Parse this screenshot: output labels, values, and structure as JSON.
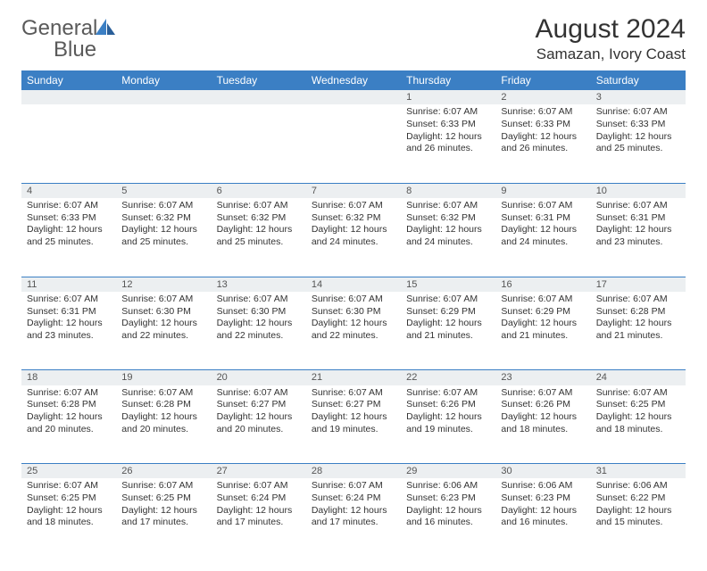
{
  "logo": {
    "word1": "General",
    "word2": "Blue"
  },
  "header": {
    "title": "August 2024",
    "location": "Samazan, Ivory Coast"
  },
  "colors": {
    "accent": "#3b7fc4",
    "daynum_bg": "#eceff1",
    "text": "#333333",
    "logo_gray": "#5a5a5a"
  },
  "daysOfWeek": [
    "Sunday",
    "Monday",
    "Tuesday",
    "Wednesday",
    "Thursday",
    "Friday",
    "Saturday"
  ],
  "weeks": [
    [
      null,
      null,
      null,
      null,
      {
        "n": "1",
        "sr": "Sunrise: 6:07 AM",
        "ss": "Sunset: 6:33 PM",
        "dl1": "Daylight: 12 hours",
        "dl2": "and 26 minutes."
      },
      {
        "n": "2",
        "sr": "Sunrise: 6:07 AM",
        "ss": "Sunset: 6:33 PM",
        "dl1": "Daylight: 12 hours",
        "dl2": "and 26 minutes."
      },
      {
        "n": "3",
        "sr": "Sunrise: 6:07 AM",
        "ss": "Sunset: 6:33 PM",
        "dl1": "Daylight: 12 hours",
        "dl2": "and 25 minutes."
      }
    ],
    [
      {
        "n": "4",
        "sr": "Sunrise: 6:07 AM",
        "ss": "Sunset: 6:33 PM",
        "dl1": "Daylight: 12 hours",
        "dl2": "and 25 minutes."
      },
      {
        "n": "5",
        "sr": "Sunrise: 6:07 AM",
        "ss": "Sunset: 6:32 PM",
        "dl1": "Daylight: 12 hours",
        "dl2": "and 25 minutes."
      },
      {
        "n": "6",
        "sr": "Sunrise: 6:07 AM",
        "ss": "Sunset: 6:32 PM",
        "dl1": "Daylight: 12 hours",
        "dl2": "and 25 minutes."
      },
      {
        "n": "7",
        "sr": "Sunrise: 6:07 AM",
        "ss": "Sunset: 6:32 PM",
        "dl1": "Daylight: 12 hours",
        "dl2": "and 24 minutes."
      },
      {
        "n": "8",
        "sr": "Sunrise: 6:07 AM",
        "ss": "Sunset: 6:32 PM",
        "dl1": "Daylight: 12 hours",
        "dl2": "and 24 minutes."
      },
      {
        "n": "9",
        "sr": "Sunrise: 6:07 AM",
        "ss": "Sunset: 6:31 PM",
        "dl1": "Daylight: 12 hours",
        "dl2": "and 24 minutes."
      },
      {
        "n": "10",
        "sr": "Sunrise: 6:07 AM",
        "ss": "Sunset: 6:31 PM",
        "dl1": "Daylight: 12 hours",
        "dl2": "and 23 minutes."
      }
    ],
    [
      {
        "n": "11",
        "sr": "Sunrise: 6:07 AM",
        "ss": "Sunset: 6:31 PM",
        "dl1": "Daylight: 12 hours",
        "dl2": "and 23 minutes."
      },
      {
        "n": "12",
        "sr": "Sunrise: 6:07 AM",
        "ss": "Sunset: 6:30 PM",
        "dl1": "Daylight: 12 hours",
        "dl2": "and 22 minutes."
      },
      {
        "n": "13",
        "sr": "Sunrise: 6:07 AM",
        "ss": "Sunset: 6:30 PM",
        "dl1": "Daylight: 12 hours",
        "dl2": "and 22 minutes."
      },
      {
        "n": "14",
        "sr": "Sunrise: 6:07 AM",
        "ss": "Sunset: 6:30 PM",
        "dl1": "Daylight: 12 hours",
        "dl2": "and 22 minutes."
      },
      {
        "n": "15",
        "sr": "Sunrise: 6:07 AM",
        "ss": "Sunset: 6:29 PM",
        "dl1": "Daylight: 12 hours",
        "dl2": "and 21 minutes."
      },
      {
        "n": "16",
        "sr": "Sunrise: 6:07 AM",
        "ss": "Sunset: 6:29 PM",
        "dl1": "Daylight: 12 hours",
        "dl2": "and 21 minutes."
      },
      {
        "n": "17",
        "sr": "Sunrise: 6:07 AM",
        "ss": "Sunset: 6:28 PM",
        "dl1": "Daylight: 12 hours",
        "dl2": "and 21 minutes."
      }
    ],
    [
      {
        "n": "18",
        "sr": "Sunrise: 6:07 AM",
        "ss": "Sunset: 6:28 PM",
        "dl1": "Daylight: 12 hours",
        "dl2": "and 20 minutes."
      },
      {
        "n": "19",
        "sr": "Sunrise: 6:07 AM",
        "ss": "Sunset: 6:28 PM",
        "dl1": "Daylight: 12 hours",
        "dl2": "and 20 minutes."
      },
      {
        "n": "20",
        "sr": "Sunrise: 6:07 AM",
        "ss": "Sunset: 6:27 PM",
        "dl1": "Daylight: 12 hours",
        "dl2": "and 20 minutes."
      },
      {
        "n": "21",
        "sr": "Sunrise: 6:07 AM",
        "ss": "Sunset: 6:27 PM",
        "dl1": "Daylight: 12 hours",
        "dl2": "and 19 minutes."
      },
      {
        "n": "22",
        "sr": "Sunrise: 6:07 AM",
        "ss": "Sunset: 6:26 PM",
        "dl1": "Daylight: 12 hours",
        "dl2": "and 19 minutes."
      },
      {
        "n": "23",
        "sr": "Sunrise: 6:07 AM",
        "ss": "Sunset: 6:26 PM",
        "dl1": "Daylight: 12 hours",
        "dl2": "and 18 minutes."
      },
      {
        "n": "24",
        "sr": "Sunrise: 6:07 AM",
        "ss": "Sunset: 6:25 PM",
        "dl1": "Daylight: 12 hours",
        "dl2": "and 18 minutes."
      }
    ],
    [
      {
        "n": "25",
        "sr": "Sunrise: 6:07 AM",
        "ss": "Sunset: 6:25 PM",
        "dl1": "Daylight: 12 hours",
        "dl2": "and 18 minutes."
      },
      {
        "n": "26",
        "sr": "Sunrise: 6:07 AM",
        "ss": "Sunset: 6:25 PM",
        "dl1": "Daylight: 12 hours",
        "dl2": "and 17 minutes."
      },
      {
        "n": "27",
        "sr": "Sunrise: 6:07 AM",
        "ss": "Sunset: 6:24 PM",
        "dl1": "Daylight: 12 hours",
        "dl2": "and 17 minutes."
      },
      {
        "n": "28",
        "sr": "Sunrise: 6:07 AM",
        "ss": "Sunset: 6:24 PM",
        "dl1": "Daylight: 12 hours",
        "dl2": "and 17 minutes."
      },
      {
        "n": "29",
        "sr": "Sunrise: 6:06 AM",
        "ss": "Sunset: 6:23 PM",
        "dl1": "Daylight: 12 hours",
        "dl2": "and 16 minutes."
      },
      {
        "n": "30",
        "sr": "Sunrise: 6:06 AM",
        "ss": "Sunset: 6:23 PM",
        "dl1": "Daylight: 12 hours",
        "dl2": "and 16 minutes."
      },
      {
        "n": "31",
        "sr": "Sunrise: 6:06 AM",
        "ss": "Sunset: 6:22 PM",
        "dl1": "Daylight: 12 hours",
        "dl2": "and 15 minutes."
      }
    ]
  ]
}
